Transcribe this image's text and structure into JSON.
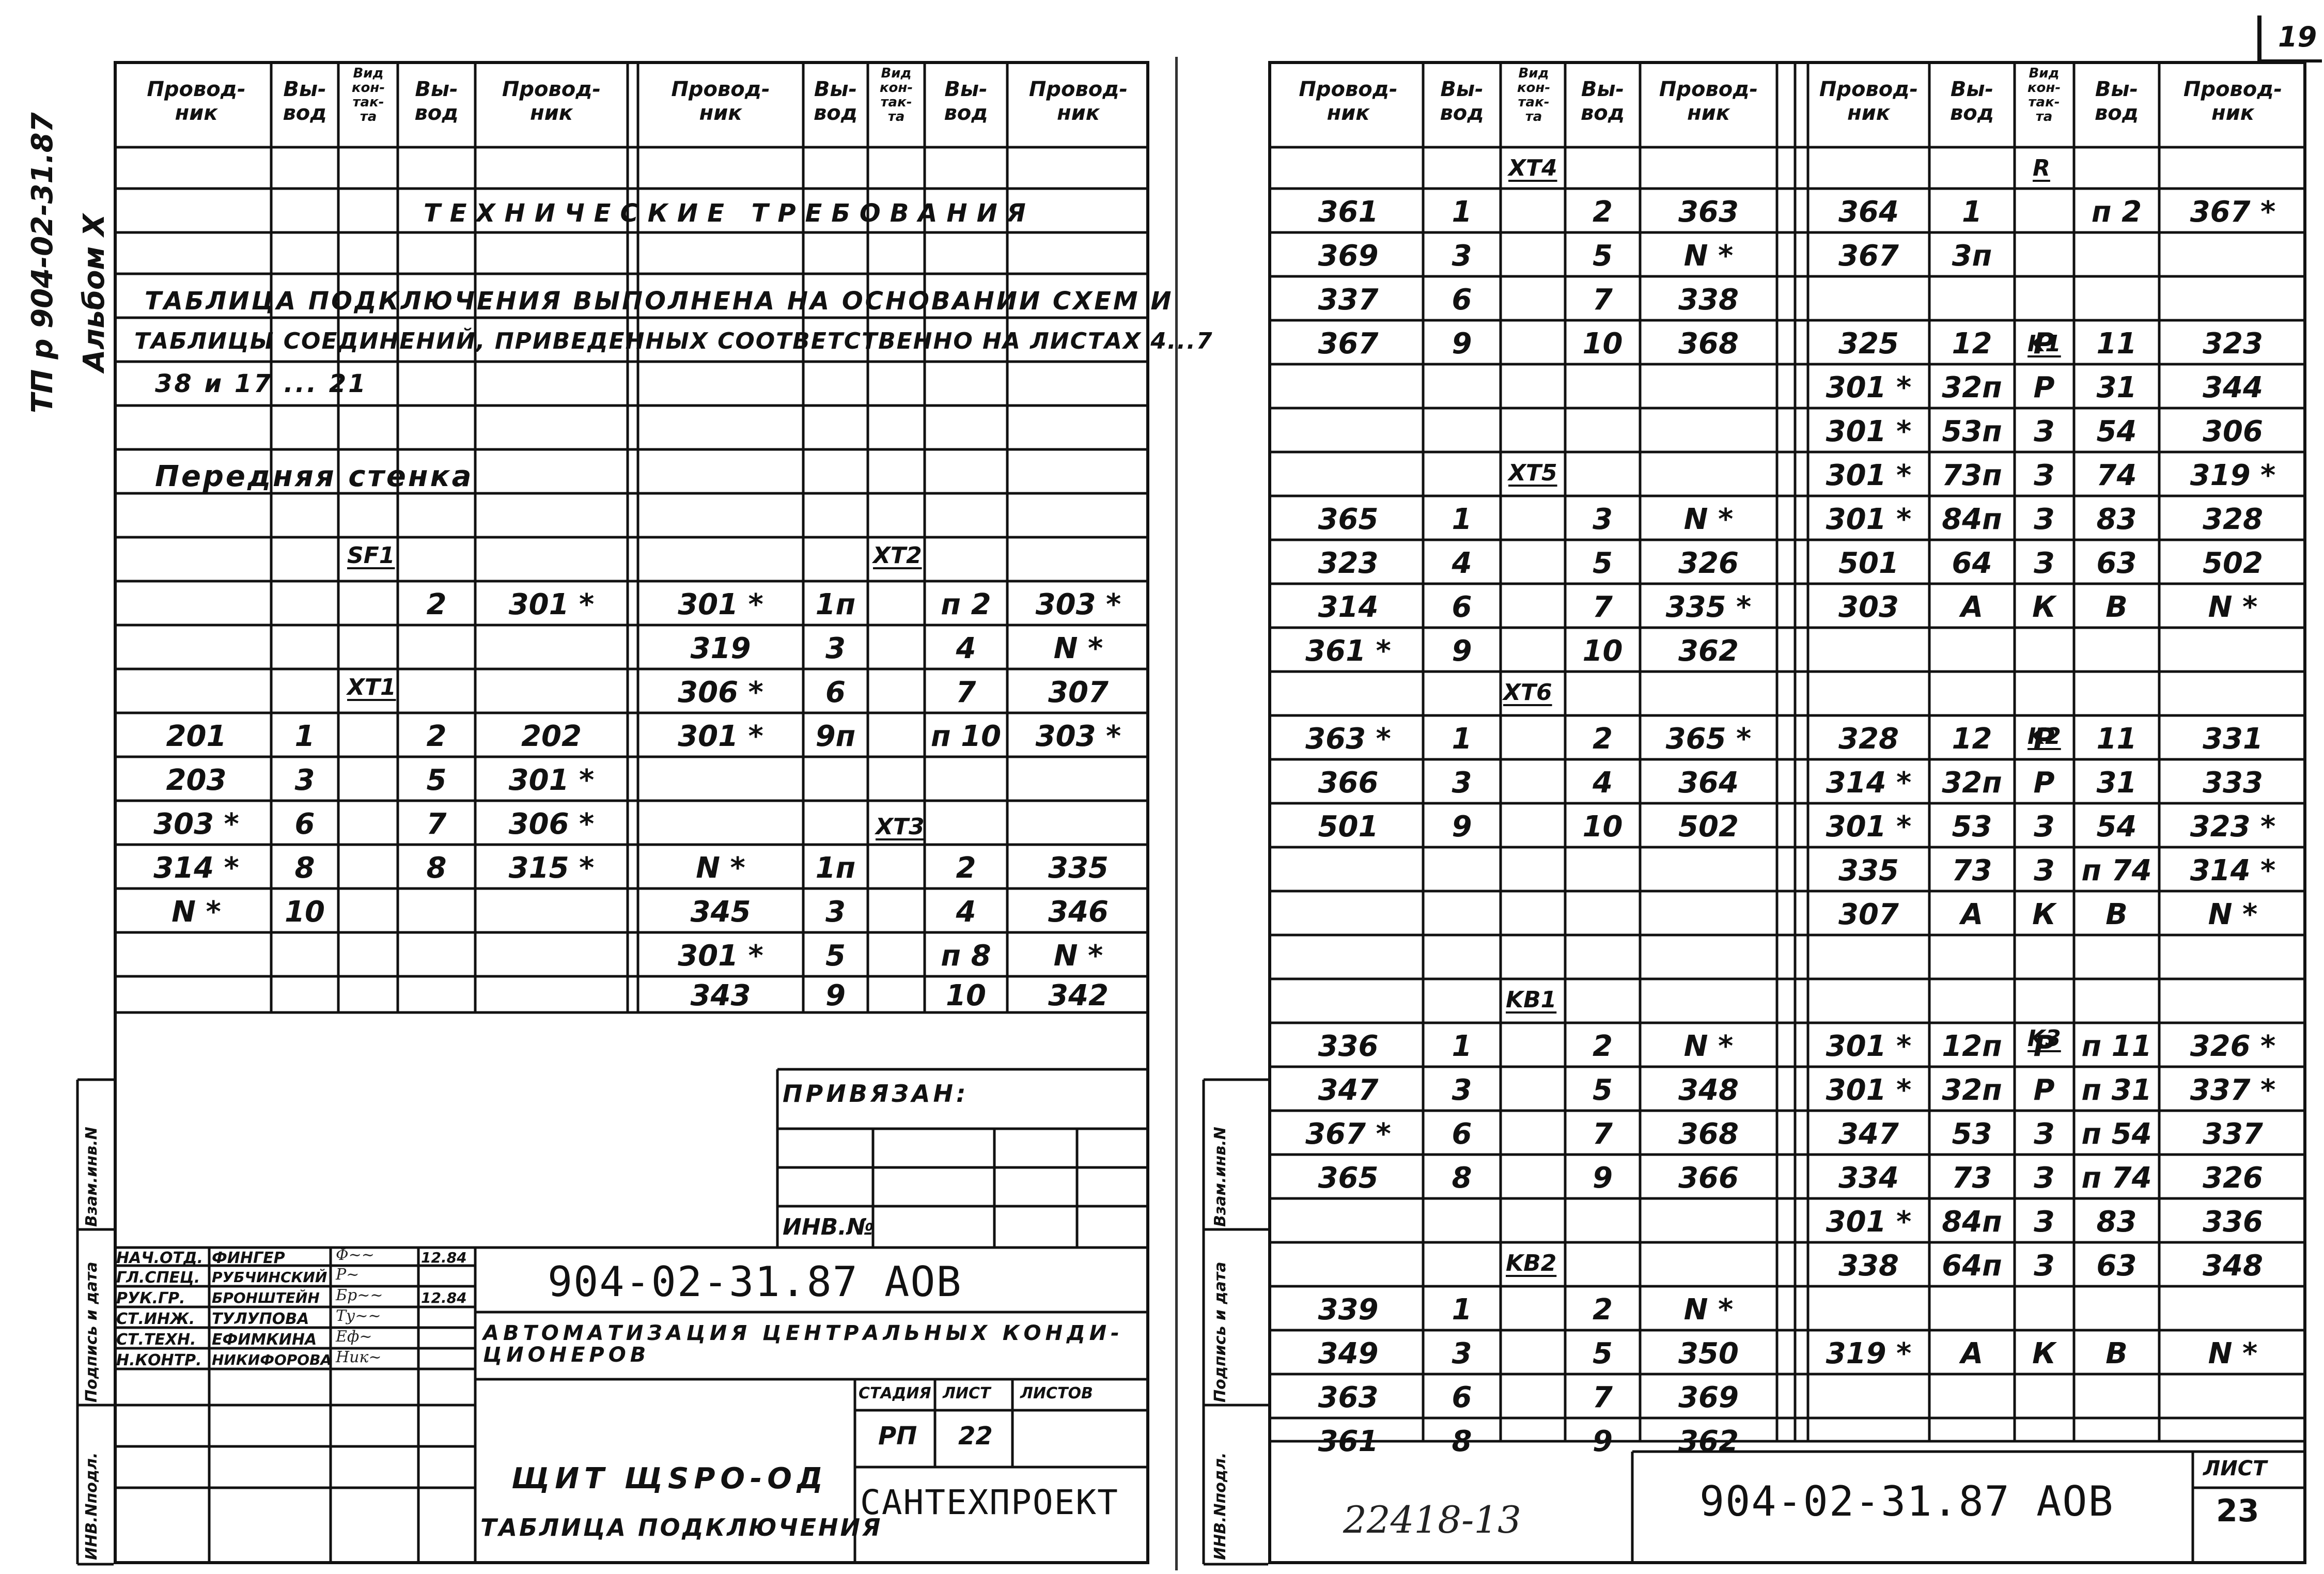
{
  "page_number": "19",
  "side_caption": "ТП р 904-02-31.87",
  "album_caption": "Альбом X",
  "headers": {
    "conductor": "Провод-\nник",
    "terminal": "Вы-\nвод",
    "contact_type": "Вид\nкон-\nтак-\nта"
  },
  "left": {
    "tech_title": "ТЕХНИЧЕСКИЕ ТРЕБОВАНИЯ",
    "note_line1": "ТАБЛИЦА ПОДКЛЮЧЕНИЯ ВЫПОЛНЕНА НА ОСНОВАНИИ СХЕМ И",
    "note_line2": "ТАБЛИЦЫ СОЕДИНЕНИЙ, ПРИВЕДЕННЫХ СООТВЕТСТВЕННО НА ЛИСТАХ 4...7",
    "note_line3": "38 и 17 ... 21",
    "wall": "Передняя стенка",
    "sf1": "SF1",
    "xt1": "XT1",
    "xt2": "XT2",
    "xt3": "XT3",
    "sf1_row": [
      "2",
      "301 *"
    ],
    "xt1_rows": [
      [
        "201",
        "1",
        "2",
        "202"
      ],
      [
        "203",
        "3",
        "5",
        "301 *"
      ],
      [
        "303 *",
        "6",
        "7",
        "306 *"
      ],
      [
        "314 *",
        "8",
        "8",
        "315 *"
      ],
      [
        "N *",
        "10",
        "",
        ""
      ]
    ],
    "xt2_rows": [
      [
        "301 *",
        "1п",
        "п 2",
        "303 *"
      ],
      [
        "319",
        "3",
        "4",
        "N *"
      ],
      [
        "306 *",
        "6",
        "7",
        "307"
      ],
      [
        "301 *",
        "9п",
        "п 10",
        "303 *"
      ]
    ],
    "xt3_rows": [
      [
        "N *",
        "1п",
        "2",
        "335"
      ],
      [
        "345",
        "3",
        "4",
        "346"
      ],
      [
        "301 *",
        "5",
        "п 8",
        "N *"
      ],
      [
        "343",
        "9",
        "10",
        "342"
      ]
    ],
    "privyazan": "ПРИВЯЗАН:",
    "inv_no": "ИНВ.№",
    "staff": [
      {
        "role": "НАЧ.ОТД.",
        "name": "ФИНГЕР",
        "date": "12.84"
      },
      {
        "role": "ГЛ.СПЕЦ.",
        "name": "РУБЧИНСКИЙ",
        "date": ""
      },
      {
        "role": "РУК.ГР.",
        "name": "БРОНШТЕЙН",
        "date": "12.84"
      },
      {
        "role": "СТ.ИНЖ.",
        "name": "ТУЛУПОВА",
        "date": ""
      },
      {
        "role": "СТ.ТЕХН.",
        "name": "ЕФИМКИНА",
        "date": ""
      },
      {
        "role": "Н.КОНТР.",
        "name": "НИКИФОРОВА",
        "date": ""
      }
    ],
    "code": "904-02-31.87 АОВ",
    "project_title": "АВТОМАТИЗАЦИЯ ЦЕНТРАЛЬНЫХ КОНДИ-\nЦИОНЕРОВ",
    "stage_label": "СТАДИЯ",
    "sheet_label": "ЛИСТ",
    "sheets_label": "ЛИСТОВ",
    "stage_value": "РП",
    "sheet_value": "22",
    "doc_title1": "ЩИТ ЩSРО-ОД",
    "doc_title2": "ТАБЛИЦА ПОДКЛЮЧЕНИЯ",
    "org": "САНТЕХПРОЕКТ"
  },
  "right": {
    "xt4": "XT4",
    "xt5": "XT5",
    "xt6": "XT6",
    "kb1": "KB1",
    "kb2": "KB2",
    "r": "R",
    "k1": "K1",
    "k2": "K2",
    "k3": "K3",
    "xt4_rows": [
      [
        "361",
        "1",
        "2",
        "363"
      ],
      [
        "369",
        "3",
        "5",
        "N *"
      ],
      [
        "337",
        "6",
        "7",
        "338"
      ],
      [
        "367",
        "9",
        "10",
        "368"
      ]
    ],
    "xt5_rows": [
      [
        "365",
        "1",
        "3",
        "N *"
      ],
      [
        "323",
        "4",
        "5",
        "326"
      ],
      [
        "314",
        "6",
        "7",
        "335 *"
      ],
      [
        "361 *",
        "9",
        "10",
        "362"
      ]
    ],
    "xt6_rows": [
      [
        "363 *",
        "1",
        "2",
        "365 *"
      ],
      [
        "366",
        "3",
        "4",
        "364"
      ],
      [
        "501",
        "9",
        "10",
        "502"
      ]
    ],
    "kb1_rows": [
      [
        "336",
        "1",
        "2",
        "N *"
      ],
      [
        "347",
        "3",
        "5",
        "348"
      ],
      [
        "367 *",
        "6",
        "7",
        "368"
      ],
      [
        "365",
        "8",
        "9",
        "366"
      ]
    ],
    "kb2_rows": [
      [
        "339",
        "1",
        "2",
        "N *"
      ],
      [
        "349",
        "3",
        "5",
        "350"
      ],
      [
        "363",
        "6",
        "7",
        "369"
      ],
      [
        "361",
        "8",
        "9",
        "362"
      ]
    ],
    "r_rows": [
      [
        "364",
        "1",
        "",
        "п 2",
        "367 *"
      ],
      [
        "367",
        "3п",
        "",
        "",
        ""
      ]
    ],
    "k1_rows": [
      [
        "325",
        "12",
        "Р",
        "11",
        "323"
      ],
      [
        "301 *",
        "32п",
        "Р",
        "31",
        "344"
      ],
      [
        "301 *",
        "53п",
        "З",
        "54",
        "306"
      ],
      [
        "301 *",
        "73п",
        "З",
        "74",
        "319 *"
      ],
      [
        "301 *",
        "84п",
        "З",
        "83",
        "328"
      ],
      [
        "501",
        "64",
        "З",
        "63",
        "502"
      ],
      [
        "303",
        "А",
        "К",
        "В",
        "N *"
      ]
    ],
    "k2_rows": [
      [
        "328",
        "12",
        "Р",
        "11",
        "331"
      ],
      [
        "314 *",
        "32п",
        "Р",
        "31",
        "333"
      ],
      [
        "301 *",
        "53",
        "З",
        "54",
        "323 *"
      ],
      [
        "335",
        "73",
        "З",
        "п 74",
        "314 *"
      ],
      [
        "307",
        "А",
        "К",
        "В",
        "N *"
      ]
    ],
    "k3_rows": [
      [
        "301 *",
        "12п",
        "Р",
        "п 11",
        "326 *"
      ],
      [
        "301 *",
        "32п",
        "Р",
        "п 31",
        "337 *"
      ],
      [
        "347",
        "53",
        "З",
        "п 54",
        "337"
      ],
      [
        "334",
        "73",
        "З",
        "п 74",
        "326"
      ],
      [
        "301 *",
        "84п",
        "З",
        "83",
        "336"
      ],
      [
        "338",
        "64п",
        "З",
        "63",
        "348"
      ]
    ],
    "k_tail": [
      "319 *",
      "А",
      "К",
      "В",
      "N *"
    ],
    "reg_no": "22418-13",
    "code": "904-02-31.87 АОВ",
    "sheet_label": "ЛИСТ",
    "sheet_value": "23"
  },
  "side_stamp": {
    "inv_podl": "ИНВ.Nподл.",
    "podpis": "Подпись и дата",
    "vzam": "Взам.инв.N"
  }
}
